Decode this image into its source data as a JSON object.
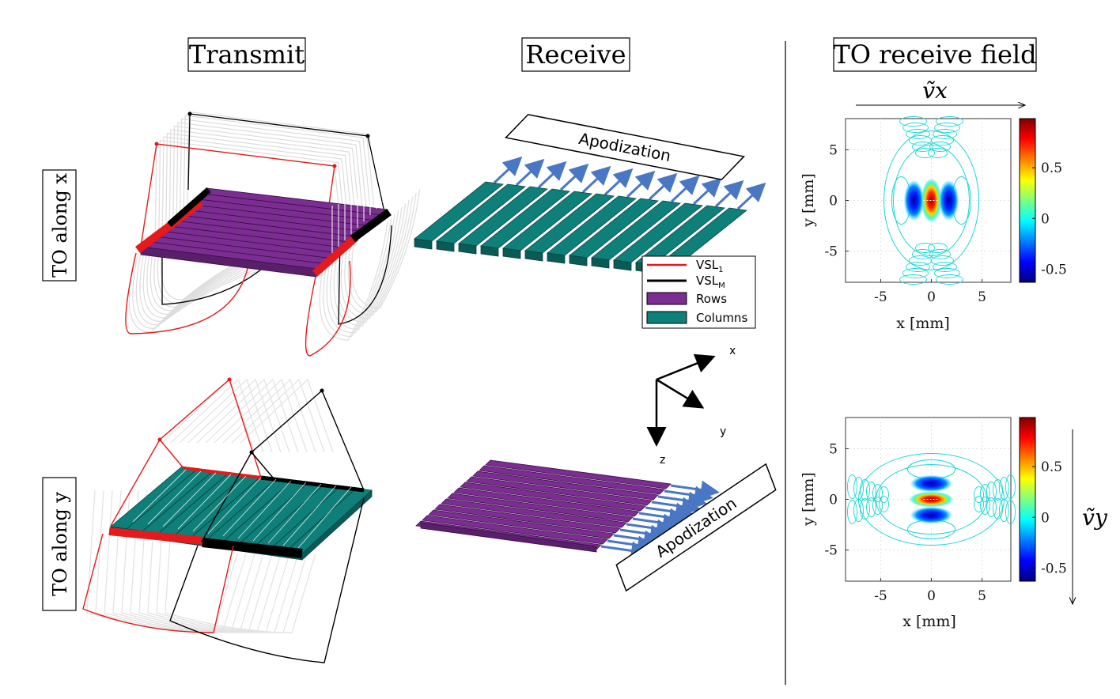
{
  "columns": {
    "transmit": "Transmit",
    "receive": "Receive",
    "field": "TO receive field"
  },
  "rows": {
    "top": "TO along x",
    "bottom": "TO along y"
  },
  "apodization": "Apodization",
  "legend": {
    "vsl1": "VSL",
    "vsl1_sub": "1",
    "vslm": "VSL",
    "vslm_sub": "M",
    "rows": "Rows",
    "columns": "Columns"
  },
  "axes3d": {
    "x": "x",
    "y": "y",
    "z": "z"
  },
  "plots": {
    "top": {
      "vector_label": "ṽx"
    },
    "bottom": {
      "vector_label": "ṽy"
    }
  },
  "plot_axes": {
    "xlabel": "x [mm]",
    "ylabel": "y [mm]",
    "xticks": [
      "-5",
      "0",
      "5"
    ],
    "yticks": [
      "5",
      "0",
      "-5"
    ],
    "cbar_ticks": [
      "0.5",
      "0",
      "-0.5"
    ]
  },
  "colors": {
    "vsl1": "#e41a1c",
    "vslm": "#000000",
    "rows": "#7b2d91",
    "columns": "#0f7f7a",
    "arrows": "#4a77c4"
  }
}
